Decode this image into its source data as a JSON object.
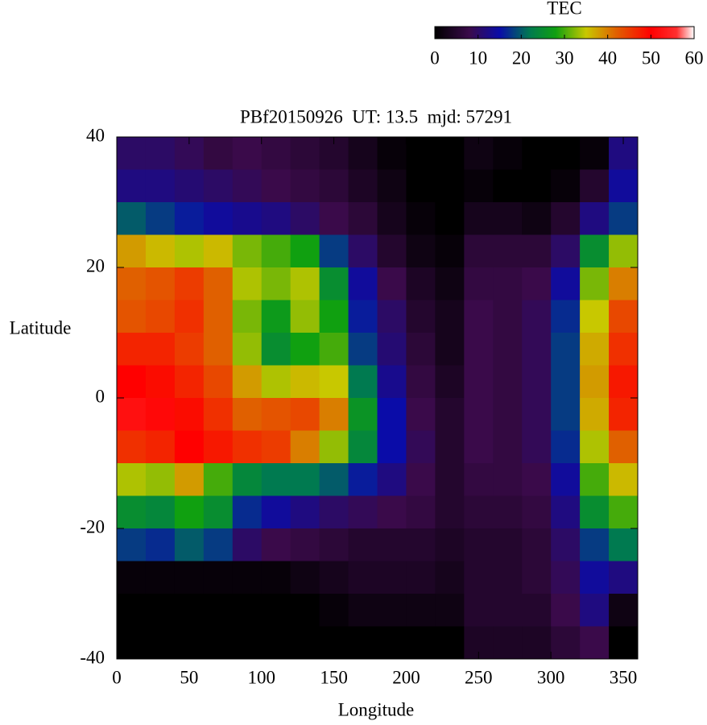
{
  "chart_data": {
    "type": "heatmap",
    "title": "PBf20150926  UT: 13.5  mjd: 57291",
    "x_label": "Longitude",
    "y_label": "Latitude",
    "colorbar_label": "TEC",
    "x": [
      10,
      30,
      50,
      70,
      90,
      110,
      130,
      150,
      170,
      190,
      210,
      230,
      250,
      270,
      290,
      310,
      330,
      350
    ],
    "y": [
      37.5,
      32.5,
      27.5,
      22.5,
      17.5,
      12.5,
      7.5,
      2.5,
      -2.5,
      -7.5,
      -12.5,
      -17.5,
      -22.5,
      -27.5,
      -32.5,
      -37.5
    ],
    "z": [
      [
        10,
        10,
        9,
        7,
        8,
        7,
        6,
        5,
        3,
        1,
        0,
        0,
        2,
        1,
        0,
        0,
        1,
        12
      ],
      [
        12,
        12,
        11,
        10,
        9,
        8,
        7,
        6,
        4,
        2,
        0,
        0,
        1,
        0,
        0,
        1,
        5,
        14
      ],
      [
        20,
        18,
        16,
        14,
        13,
        12,
        10,
        8,
        6,
        3,
        1,
        0,
        3,
        3,
        2,
        5,
        12,
        18
      ],
      [
        38,
        36,
        34,
        36,
        32,
        30,
        28,
        18,
        10,
        5,
        2,
        1,
        6,
        6,
        6,
        10,
        25,
        33
      ],
      [
        42,
        43,
        45,
        42,
        34,
        32,
        34,
        25,
        14,
        8,
        4,
        2,
        7,
        7,
        8,
        14,
        32,
        40
      ],
      [
        43,
        44,
        46,
        42,
        32,
        27,
        33,
        28,
        16,
        10,
        5,
        3,
        8,
        7,
        9,
        17,
        35,
        44
      ],
      [
        47,
        47,
        45,
        42,
        33,
        25,
        28,
        30,
        18,
        11,
        6,
        3,
        8,
        7,
        9,
        18,
        37,
        46
      ],
      [
        50,
        49,
        47,
        44,
        38,
        34,
        36,
        35,
        22,
        13,
        7,
        4,
        8,
        7,
        9,
        18,
        38,
        48
      ],
      [
        52,
        51,
        49,
        46,
        42,
        43,
        44,
        40,
        26,
        15,
        8,
        5,
        8,
        7,
        9,
        18,
        37,
        47
      ],
      [
        46,
        47,
        50,
        48,
        46,
        45,
        40,
        33,
        24,
        15,
        9,
        5,
        8,
        7,
        9,
        17,
        34,
        42
      ],
      [
        34,
        33,
        38,
        30,
        24,
        22,
        22,
        20,
        16,
        12,
        8,
        5,
        7,
        7,
        8,
        14,
        30,
        36
      ],
      [
        25,
        24,
        28,
        25,
        17,
        14,
        12,
        10,
        9,
        8,
        7,
        5,
        6,
        6,
        7,
        12,
        25,
        30
      ],
      [
        18,
        17,
        20,
        18,
        10,
        8,
        7,
        6,
        5,
        5,
        5,
        4,
        5,
        5,
        6,
        10,
        18,
        22
      ],
      [
        1,
        1,
        1,
        1,
        1,
        1,
        2,
        3,
        4,
        4,
        4,
        3,
        5,
        5,
        6,
        9,
        14,
        12
      ],
      [
        0,
        0,
        0,
        0,
        0,
        0,
        0,
        1,
        2,
        2,
        2,
        2,
        5,
        5,
        5,
        8,
        12,
        2
      ],
      [
        0,
        0,
        0,
        0,
        0,
        0,
        0,
        0,
        0,
        0,
        0,
        0,
        4,
        4,
        4,
        6,
        8,
        0
      ]
    ],
    "xlim": [
      0,
      360
    ],
    "xticks": [
      0,
      50,
      100,
      150,
      200,
      250,
      300,
      350
    ],
    "ylim": [
      -40,
      40
    ],
    "yticks": [
      -40,
      -20,
      0,
      20,
      40
    ],
    "clim": [
      0,
      60
    ],
    "cticks": [
      0,
      10,
      20,
      30,
      40,
      50,
      60
    ],
    "colormap": [
      [
        0,
        "#000000"
      ],
      [
        8,
        "#3a0a4a"
      ],
      [
        15,
        "#0a0ca8"
      ],
      [
        22,
        "#007a50"
      ],
      [
        28,
        "#10a010"
      ],
      [
        35,
        "#c8c800"
      ],
      [
        42,
        "#e06000"
      ],
      [
        50,
        "#ff0000"
      ],
      [
        56,
        "#ff3030"
      ],
      [
        60,
        "#ffffff"
      ]
    ]
  }
}
